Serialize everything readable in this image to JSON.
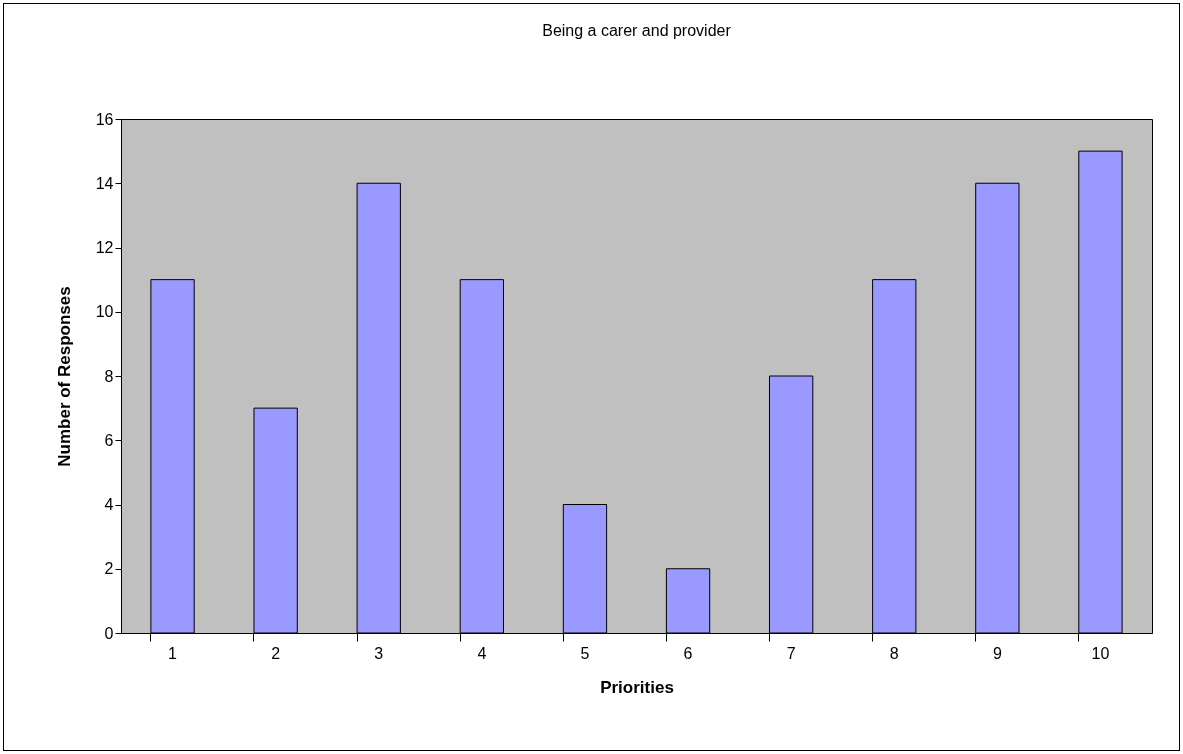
{
  "chart_data": {
    "type": "bar",
    "title": "Being a carer and provider",
    "xlabel": "Priorities",
    "ylabel": "Number of Responses",
    "categories": [
      "1",
      "2",
      "3",
      "4",
      "5",
      "6",
      "7",
      "8",
      "9",
      "10"
    ],
    "values": [
      11,
      7,
      14,
      11,
      4,
      2,
      8,
      11,
      14,
      15
    ],
    "color": "#9999ff",
    "ylim": [
      0,
      16
    ],
    "yticks": [
      0,
      2,
      4,
      6,
      8,
      10,
      12,
      14,
      16
    ],
    "grid": false
  }
}
